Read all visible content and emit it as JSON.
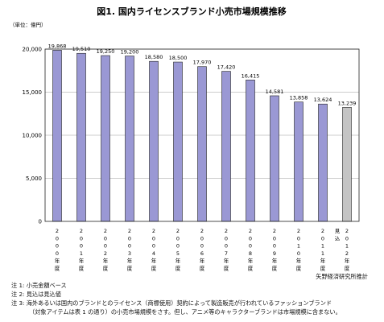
{
  "chart_data": {
    "type": "bar",
    "title": "図1. 国内ライセンスブランド小売市場規模推移",
    "unit_label": "（単位：億円）",
    "ylim": [
      0,
      20000
    ],
    "yticks": [
      "0",
      "5,000",
      "10,000",
      "15,000",
      "20,000"
    ],
    "ytick_values": [
      0,
      5000,
      10000,
      15000,
      20000
    ],
    "grid": true,
    "categories": [
      "2000年度",
      "2001年度",
      "2002年度",
      "2003年度",
      "2004年度",
      "2005年度",
      "2006年度",
      "2007年度",
      "2008年度",
      "2009年度",
      "2010年度",
      "2011年度",
      "2012年度"
    ],
    "values": [
      19868,
      19510,
      19250,
      19200,
      18580,
      18500,
      17970,
      17420,
      16415,
      14581,
      13858,
      13624,
      13239
    ],
    "data_labels": [
      "19,868",
      "19,510",
      "19,250",
      "19,200",
      "18,580",
      "18,500",
      "17,970",
      "17,420",
      "16,415",
      "14,581",
      "13,858",
      "13,624",
      "13,239"
    ],
    "estimate_flags": [
      false,
      false,
      false,
      false,
      false,
      false,
      false,
      false,
      false,
      false,
      false,
      false,
      true
    ],
    "estimate_label": "見込",
    "colors": {
      "actual": "#9a98d4",
      "estimate": "#c4c4c4",
      "outline": "#222222",
      "grid": "#999999"
    }
  },
  "notes": [
    "注 1: 小売金額ベース",
    "注 2: 見込は見込値",
    "注 3: 海外あるいは国内のブランドとのライセンス（商標使用）契約によって製造販売が行われているファッションブランド",
    "（対象アイテムは表 1 の通り）の小売市場規模をさす。但し、アニメ等のキャラクターブランドは市場規模に含まない。"
  ],
  "source": "矢野経済研究所推計"
}
